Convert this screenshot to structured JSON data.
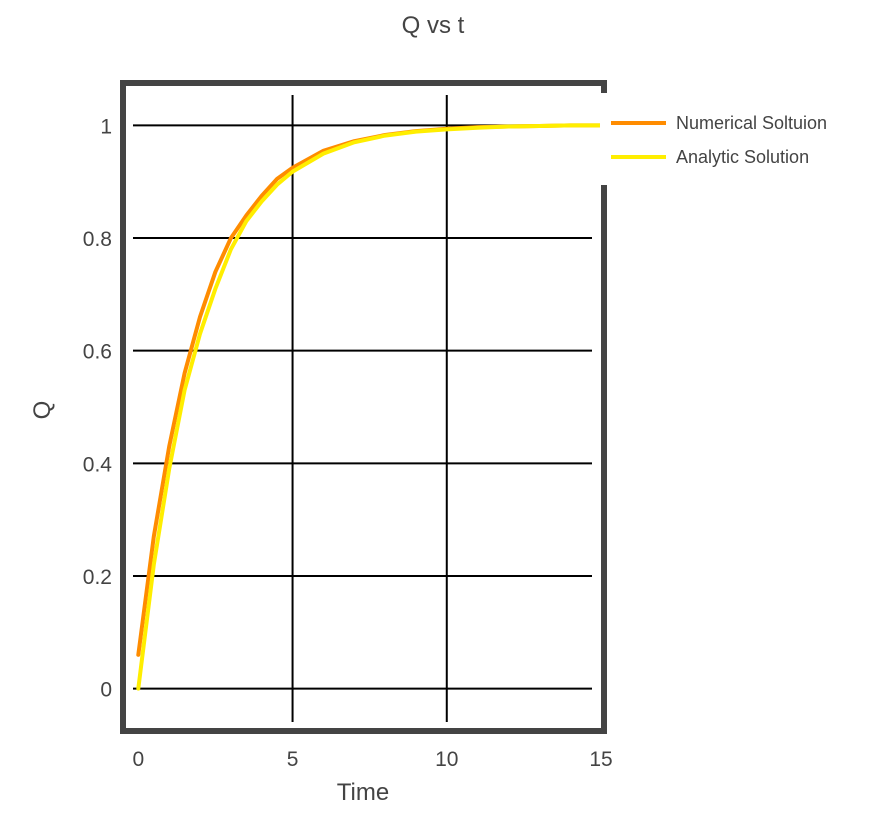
{
  "chart_data": {
    "type": "line",
    "title": "Q vs t",
    "xlabel": "Time",
    "ylabel": "Q",
    "xlim": [
      -0.4,
      15
    ],
    "ylim": [
      -0.07,
      1.07
    ],
    "xticks": [
      0,
      5,
      10,
      15
    ],
    "yticks": [
      0,
      0.2,
      0.4,
      0.6,
      0.8,
      1
    ],
    "xtick_labels": [
      "0",
      "5",
      "10",
      "15"
    ],
    "ytick_labels": [
      "0",
      "0.2",
      "0.4",
      "0.6",
      "0.8",
      "1"
    ],
    "grid": true,
    "legend_position": "top-right outside",
    "series": [
      {
        "name": "Numerical Soltuion",
        "color": "#ff8c00",
        "x": [
          0,
          0.5,
          1,
          1.5,
          2,
          2.5,
          3,
          3.5,
          4,
          4.5,
          5,
          6,
          7,
          8,
          9,
          10,
          11,
          12,
          13,
          14,
          15
        ],
        "y": [
          0.06,
          0.27,
          0.43,
          0.56,
          0.66,
          0.74,
          0.8,
          0.84,
          0.875,
          0.905,
          0.925,
          0.955,
          0.972,
          0.983,
          0.99,
          0.994,
          0.997,
          0.998,
          0.999,
          1.0,
          1.0
        ]
      },
      {
        "name": "Analytic Solution",
        "color": "#ffee00",
        "x": [
          0,
          0.5,
          1,
          1.5,
          2,
          2.5,
          3,
          3.5,
          4,
          4.5,
          5,
          6,
          7,
          8,
          9,
          10,
          11,
          12,
          13,
          14,
          15
        ],
        "y": [
          0.0,
          0.22,
          0.39,
          0.53,
          0.63,
          0.71,
          0.78,
          0.83,
          0.865,
          0.895,
          0.918,
          0.95,
          0.97,
          0.982,
          0.989,
          0.993,
          0.996,
          0.998,
          0.999,
          1.0,
          1.0
        ]
      }
    ],
    "colors": {
      "frame": "#444444",
      "grid": "#000000",
      "text": "#444444"
    }
  }
}
